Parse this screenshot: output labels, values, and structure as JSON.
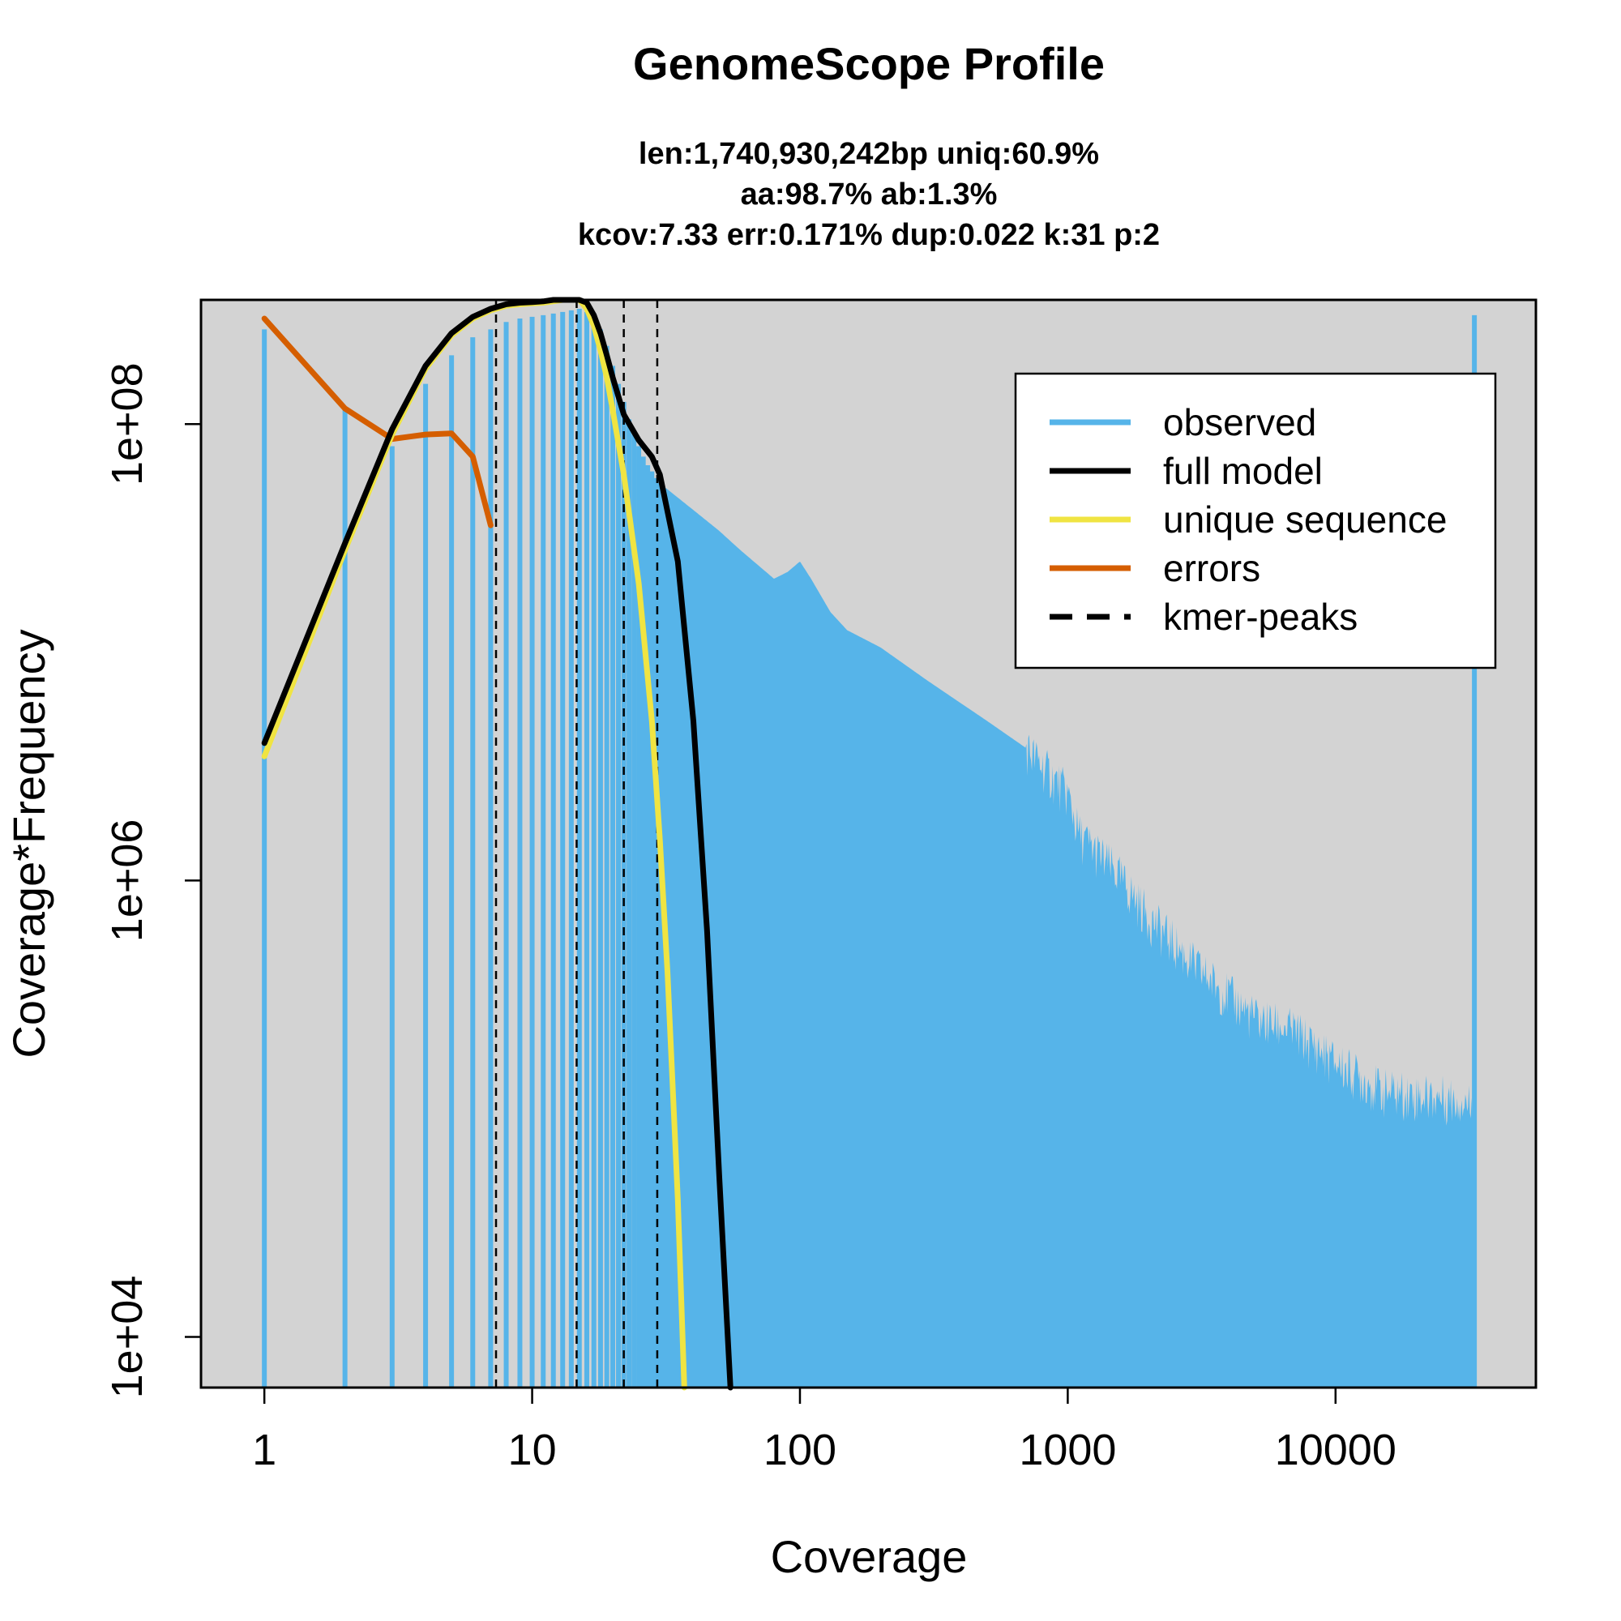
{
  "chart_data": {
    "type": "bar",
    "title": "GenomeScope Profile",
    "subtitle_lines": [
      "len:1,740,930,242bp uniq:60.9%",
      "aa:98.7% ab:1.3%",
      "kcov:7.33 err:0.171%  dup:0.022  k:31 p:2"
    ],
    "xlabel": "Coverage",
    "ylabel": "Coverage*Frequency",
    "x_scale": "log",
    "y_scale": "log",
    "xlim": [
      0.58,
      56000
    ],
    "ylim": [
      6000,
      350000000
    ],
    "x_ticks": [
      1,
      10,
      100,
      1000,
      10000
    ],
    "x_tick_labels": [
      "1",
      "10",
      "100",
      "1000",
      "10000"
    ],
    "y_ticks": [
      10000,
      1000000,
      100000000
    ],
    "y_tick_labels": [
      "1e+04",
      "1e+06",
      "1e+08"
    ],
    "grid": false,
    "legend_position": "top-right",
    "background_color": "#d3d3d3",
    "colors": {
      "observed": "#56b4e9",
      "full_model": "#000000",
      "unique_sequence": "#f0e442",
      "errors": "#d55e00",
      "kmer_peaks": "#000000"
    },
    "legend": [
      {
        "key": "observed",
        "label": "observed",
        "style": "solid"
      },
      {
        "key": "full_model",
        "label": "full model",
        "style": "solid"
      },
      {
        "key": "unique_sequence",
        "label": "unique sequence",
        "style": "solid"
      },
      {
        "key": "errors",
        "label": "errors",
        "style": "solid"
      },
      {
        "key": "kmer_peaks",
        "label": "kmer-peaks",
        "style": "dashed"
      }
    ],
    "kmer_peaks": [
      7.33,
      14.66,
      21.99,
      29.32
    ],
    "observed_discrete": {
      "x": [
        1,
        2,
        3,
        4,
        5,
        6,
        7,
        8,
        9,
        10,
        11,
        12,
        13,
        14,
        15,
        16,
        17,
        18,
        19,
        20,
        21,
        22,
        23,
        24,
        25,
        26,
        27,
        28,
        29,
        30
      ],
      "y": [
        260000000,
        115000000,
        80000000,
        150000000,
        200000000,
        240000000,
        260000000,
        280000000,
        290000000,
        295000000,
        300000000,
        305000000,
        310000000,
        315000000,
        320000000,
        310000000,
        290000000,
        260000000,
        220000000,
        180000000,
        150000000,
        125000000,
        105000000,
        90000000,
        80000000,
        72000000,
        66000000,
        62000000,
        58000000,
        55000000
      ]
    },
    "observed_tail": {
      "x": [
        30,
        40,
        50,
        60,
        70,
        80,
        90,
        100,
        110,
        130,
        150,
        200,
        300,
        500,
        700,
        1000,
        1100,
        1500,
        2000,
        3000,
        5000,
        7000,
        10000,
        15000,
        20000,
        30000,
        33000
      ],
      "y": [
        55000000,
        42000000,
        34000000,
        28000000,
        24000000,
        21000000,
        22500000,
        25000000,
        21000000,
        15000000,
        12500000,
        10500000,
        7500000,
        5000000,
        3800000,
        2400000,
        1600000,
        1100000,
        700000,
        420000,
        250000,
        220000,
        160000,
        120000,
        115000,
        110000,
        100000
      ]
    },
    "observed_spike": {
      "x": 33000,
      "y": 300000000
    },
    "full_model": {
      "x": [
        1,
        2,
        3,
        4,
        5,
        6,
        7,
        8,
        9,
        10,
        11,
        12,
        13,
        14,
        15,
        16,
        17,
        18,
        19,
        20,
        22,
        25,
        28,
        30,
        35,
        40,
        45,
        50,
        55
      ],
      "y": [
        4000000,
        30000000,
        95000000,
        180000000,
        250000000,
        295000000,
        320000000,
        335000000,
        340000000,
        342000000,
        345000000,
        350000000,
        355000000,
        360000000,
        358000000,
        340000000,
        300000000,
        250000000,
        200000000,
        160000000,
        110000000,
        85000000,
        72000000,
        60000000,
        25000000,
        5000000,
        600000,
        50000,
        5000
      ]
    },
    "unique_sequence": {
      "x": [
        1,
        2,
        3,
        4,
        5,
        6,
        7,
        8,
        9,
        10,
        11,
        12,
        13,
        14,
        15,
        16,
        17,
        18,
        19,
        20,
        22,
        25,
        28,
        30,
        32,
        35,
        37
      ],
      "y": [
        3500000,
        28000000,
        90000000,
        175000000,
        245000000,
        290000000,
        315000000,
        330000000,
        335000000,
        338000000,
        340000000,
        345000000,
        350000000,
        355000000,
        350000000,
        320000000,
        270000000,
        210000000,
        160000000,
        115000000,
        60000000,
        20000000,
        5000000,
        1500000,
        400000,
        40000,
        5000
      ]
    },
    "errors": {
      "x": [
        1,
        2,
        3,
        4,
        5,
        6,
        7
      ],
      "y": [
        290000000,
        117000000,
        86000000,
        90000000,
        91000000,
        72000000,
        36000000
      ]
    }
  }
}
